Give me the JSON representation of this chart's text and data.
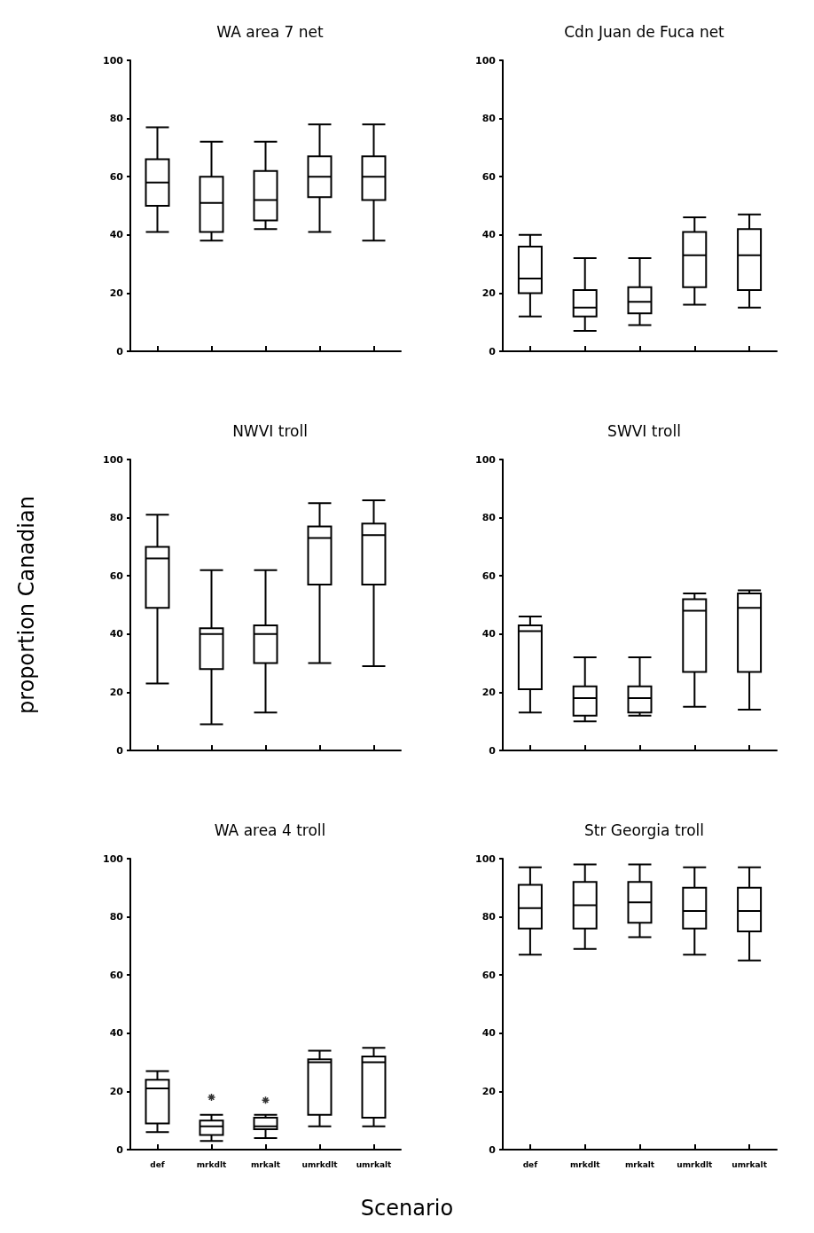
{
  "chart_data": [
    {
      "type": "box",
      "title": "WA area 7 net",
      "categories": [
        null,
        null,
        null,
        null,
        null
      ],
      "tick_labels": "y",
      "ylim": [
        0,
        100
      ],
      "yticks": [
        0,
        20,
        40,
        60,
        80,
        100
      ],
      "boxes": [
        {
          "low": 41,
          "q1": 50,
          "median": 58,
          "q3": 66,
          "high": 77
        },
        {
          "low": 38,
          "q1": 41,
          "median": 51,
          "q3": 60,
          "high": 72
        },
        {
          "low": 42,
          "q1": 45,
          "median": 52,
          "q3": 62,
          "high": 72
        },
        {
          "low": 41,
          "q1": 53,
          "median": 60,
          "q3": 67,
          "high": 78
        },
        {
          "low": 38,
          "q1": 52,
          "median": 60,
          "q3": 67,
          "high": 78
        }
      ]
    },
    {
      "type": "box",
      "title": "Cdn Juan de Fuca net",
      "categories": [
        null,
        null,
        null,
        null,
        null
      ],
      "tick_labels": "y",
      "ylim": [
        0,
        100
      ],
      "yticks": [
        0,
        20,
        40,
        60,
        80,
        100
      ],
      "boxes": [
        {
          "low": 12,
          "q1": 20,
          "median": 25,
          "q3": 36,
          "high": 40
        },
        {
          "low": 7,
          "q1": 12,
          "median": 15,
          "q3": 21,
          "high": 32
        },
        {
          "low": 9,
          "q1": 13,
          "median": 17,
          "q3": 22,
          "high": 32
        },
        {
          "low": 16,
          "q1": 22,
          "median": 33,
          "q3": 41,
          "high": 46
        },
        {
          "low": 15,
          "q1": 21,
          "median": 33,
          "q3": 42,
          "high": 47
        }
      ]
    },
    {
      "type": "box",
      "title": "NWVI troll",
      "ylabel": "proportion Canadian",
      "categories": [
        null,
        null,
        null,
        null,
        null
      ],
      "tick_labels": "y",
      "ylim": [
        0,
        100
      ],
      "yticks": [
        0,
        20,
        40,
        60,
        80,
        100
      ],
      "boxes": [
        {
          "low": 23,
          "q1": 49,
          "median": 66,
          "q3": 70,
          "high": 81
        },
        {
          "low": 9,
          "q1": 28,
          "median": 40,
          "q3": 42,
          "high": 62
        },
        {
          "low": 13,
          "q1": 30,
          "median": 40,
          "q3": 43,
          "high": 62
        },
        {
          "low": 30,
          "q1": 57,
          "median": 73,
          "q3": 77,
          "high": 85
        },
        {
          "low": 29,
          "q1": 57,
          "median": 74,
          "q3": 78,
          "high": 86
        }
      ]
    },
    {
      "type": "box",
      "title": "SWVI troll",
      "categories": [
        null,
        null,
        null,
        null,
        null
      ],
      "tick_labels": "y",
      "ylim": [
        0,
        100
      ],
      "yticks": [
        0,
        20,
        40,
        60,
        80,
        100
      ],
      "boxes": [
        {
          "low": 13,
          "q1": 21,
          "median": 41,
          "q3": 43,
          "high": 46
        },
        {
          "low": 10,
          "q1": 12,
          "median": 18,
          "q3": 22,
          "high": 32
        },
        {
          "low": 12,
          "q1": 13,
          "median": 18,
          "q3": 22,
          "high": 32
        },
        {
          "low": 15,
          "q1": 27,
          "median": 48,
          "q3": 52,
          "high": 54
        },
        {
          "low": 14,
          "q1": 27,
          "median": 49,
          "q3": 54,
          "high": 55
        }
      ]
    },
    {
      "type": "box",
      "title": "WA area 4 troll",
      "xlabel": "Scenario",
      "categories": [
        "def",
        "mrkdlt",
        "mrkalt",
        "umrkdlt",
        "umrkalt"
      ],
      "ylim": [
        0,
        100
      ],
      "yticks": [
        0,
        20,
        40,
        60,
        80,
        100
      ],
      "boxes": [
        {
          "low": 6,
          "q1": 9,
          "median": 21,
          "q3": 24,
          "high": 27
        },
        {
          "low": 3,
          "q1": 5,
          "median": 8,
          "q3": 10,
          "high": 12,
          "outliers": [
            18
          ]
        },
        {
          "low": 4,
          "q1": 7,
          "median": 8,
          "q3": 11,
          "high": 12,
          "outliers": [
            17
          ]
        },
        {
          "low": 8,
          "q1": 12,
          "median": 30,
          "q3": 31,
          "high": 34
        },
        {
          "low": 8,
          "q1": 11,
          "median": 30,
          "q3": 32,
          "high": 35
        }
      ]
    },
    {
      "type": "box",
      "title": "Str Georgia troll",
      "categories": [
        "def",
        "mrkdlt",
        "mrkalt",
        "umrkdlt",
        "umrkalt"
      ],
      "ylim": [
        0,
        100
      ],
      "yticks": [
        0,
        20,
        40,
        60,
        80,
        100
      ],
      "boxes": [
        {
          "low": 67,
          "q1": 76,
          "median": 83,
          "q3": 91,
          "high": 97
        },
        {
          "low": 69,
          "q1": 76,
          "median": 84,
          "q3": 92,
          "high": 98
        },
        {
          "low": 73,
          "q1": 78,
          "median": 85,
          "q3": 92,
          "high": 98
        },
        {
          "low": 67,
          "q1": 76,
          "median": 82,
          "q3": 90,
          "high": 97
        },
        {
          "low": 65,
          "q1": 75,
          "median": 82,
          "q3": 90,
          "high": 97
        }
      ]
    }
  ]
}
